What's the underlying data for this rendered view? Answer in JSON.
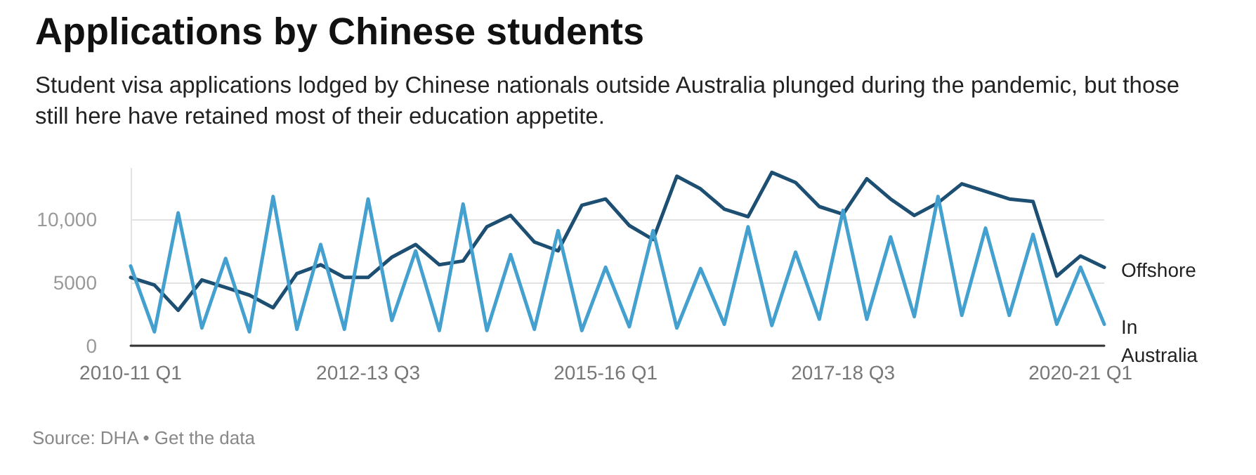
{
  "chart_data": {
    "type": "line",
    "title": "Applications by Chinese students",
    "subtitle": "Student visa applications lodged by Chinese nationals outside Australia plunged during the pandemic, but those still here have retained most of their education appetite.",
    "annotations": [
      "Source: DHA • Get the data"
    ],
    "categories": [
      "2010-11 Q1",
      null,
      null,
      null,
      null,
      null,
      null,
      null,
      null,
      null,
      "2012-13 Q3",
      null,
      null,
      null,
      null,
      null,
      null,
      null,
      null,
      null,
      "2015-16 Q1",
      null,
      null,
      null,
      null,
      null,
      null,
      null,
      null,
      null,
      "2017-18 Q3",
      null,
      null,
      null,
      null,
      null,
      null,
      null,
      null,
      null,
      "2020-21 Q1",
      null
    ],
    "series": [
      {
        "name": "Offshore",
        "color": "#1d4f73",
        "values": [
          5400,
          4800,
          2800,
          5200,
          4600,
          4000,
          3000,
          5700,
          6400,
          5400,
          5400,
          7000,
          8000,
          6400,
          6700,
          9400,
          10300,
          8200,
          7500,
          11100,
          11600,
          9500,
          8400,
          13400,
          12400,
          10800,
          10200,
          13700,
          12900,
          11000,
          10400,
          13200,
          11600,
          10300,
          11300,
          12800,
          12200,
          11600,
          11400,
          5500,
          7100,
          6200
        ]
      },
      {
        "name": "In Australia",
        "color": "#44a0cf",
        "values": [
          6300,
          1100,
          10500,
          1400,
          6900,
          1100,
          11800,
          1300,
          8000,
          1300,
          11600,
          2000,
          7500,
          1200,
          11200,
          1200,
          7200,
          1300,
          9100,
          1200,
          6200,
          1500,
          9100,
          1400,
          6100,
          1700,
          9400,
          1600,
          7400,
          2100,
          10700,
          2100,
          8600,
          2300,
          11800,
          2400,
          9300,
          2400,
          8800,
          1700,
          6200,
          1700
        ]
      }
    ],
    "ylim": [
      0,
      14000
    ],
    "yticks": [
      0,
      5000,
      {
        "value": 10000,
        "label": "10,000"
      }
    ],
    "grid": "y",
    "legend": false,
    "marker": "none",
    "line_style": "solid"
  }
}
